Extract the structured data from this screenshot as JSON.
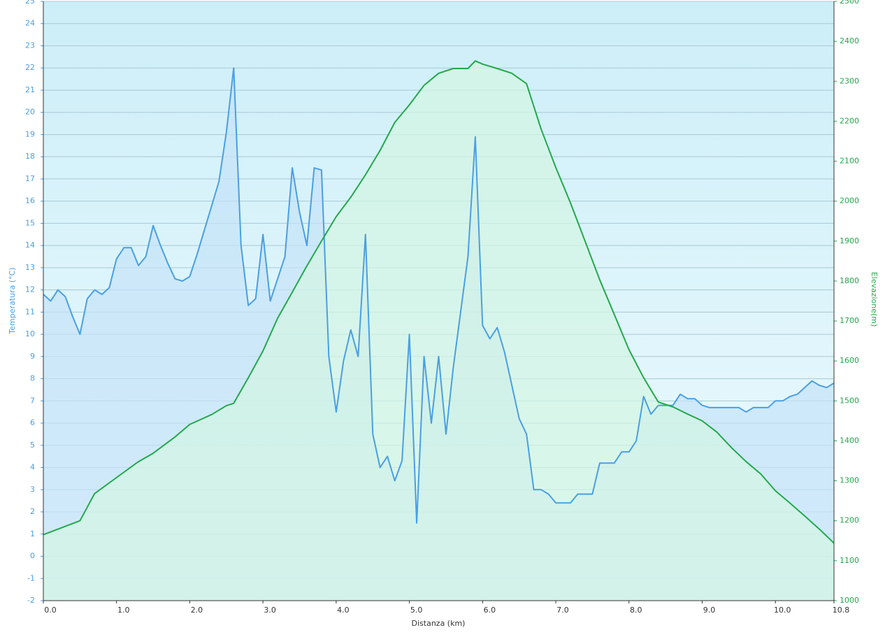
{
  "chart_data": {
    "type": "line",
    "x_label": "Distanza  (km)",
    "y_label": "Temperatura (°C)",
    "y2_label": "Elevazione(m)",
    "xlim": [
      0,
      10.8
    ],
    "xticks": [
      {
        "value": 0,
        "label": "0.0"
      },
      {
        "value": 1,
        "label": "1.0"
      },
      {
        "value": 2,
        "label": "2.0"
      },
      {
        "value": 3,
        "label": "3.0"
      },
      {
        "value": 4,
        "label": "4.0"
      },
      {
        "value": 5,
        "label": "5.0"
      },
      {
        "value": 6,
        "label": "6.0"
      },
      {
        "value": 7,
        "label": "7.0"
      },
      {
        "value": 8,
        "label": "8.0"
      },
      {
        "value": 9,
        "label": "9.0"
      },
      {
        "value": 10,
        "label": "10.0"
      },
      10.8
    ],
    "ylim": [
      -2,
      25
    ],
    "yticks": [
      -2,
      -1,
      0,
      1,
      2,
      3,
      4,
      5,
      6,
      7,
      8,
      9,
      10,
      11,
      12,
      13,
      14,
      15,
      16,
      17,
      18,
      19,
      20,
      21,
      22,
      23,
      24,
      25
    ],
    "y2lim": [
      1000,
      2500
    ],
    "y2ticks": [
      1000,
      1100,
      1200,
      1300,
      1400,
      1500,
      1600,
      1700,
      1800,
      1900,
      2000,
      2100,
      2200,
      2300,
      2400,
      2500
    ],
    "grid": true,
    "series": [
      {
        "name": "Temperatura",
        "color": "#4a9fe3",
        "fill": "#c4e3f8",
        "x": [
          0,
          0.1,
          0.2,
          0.3,
          0.4,
          0.5,
          0.6,
          0.7,
          0.8,
          0.9,
          1.0,
          1.1,
          1.2,
          1.3,
          1.4,
          1.5,
          1.6,
          1.7,
          1.8,
          1.9,
          2.0,
          2.1,
          2.2,
          2.3,
          2.4,
          2.5,
          2.6,
          2.7,
          2.8,
          2.9,
          3.0,
          3.1,
          3.2,
          3.3,
          3.4,
          3.5,
          3.6,
          3.7,
          3.8,
          3.9,
          4.0,
          4.1,
          4.2,
          4.3,
          4.4,
          4.5,
          4.6,
          4.7,
          4.8,
          4.9,
          5.0,
          5.1,
          5.2,
          5.3,
          5.4,
          5.5,
          5.6,
          5.7,
          5.8,
          5.9,
          6.0,
          6.1,
          6.2,
          6.3,
          6.4,
          6.5,
          6.6,
          6.7,
          6.8,
          6.9,
          7.0,
          7.1,
          7.2,
          7.3,
          7.4,
          7.5,
          7.6,
          7.7,
          7.8,
          7.9,
          8.0,
          8.1,
          8.2,
          8.3,
          8.4,
          8.5,
          8.6,
          8.7,
          8.8,
          8.9,
          9.0,
          9.1,
          9.2,
          9.3,
          9.4,
          9.5,
          9.6,
          9.7,
          9.8,
          9.9,
          10.0,
          10.1,
          10.2,
          10.3,
          10.4,
          10.5,
          10.6,
          10.7,
          10.8
        ],
        "values": [
          11.8,
          11.5,
          12.0,
          11.7,
          10.8,
          10.0,
          11.6,
          12.0,
          11.8,
          12.1,
          13.4,
          13.9,
          13.9,
          13.1,
          13.5,
          14.9,
          14.0,
          13.2,
          12.5,
          12.4,
          12.6,
          13.6,
          14.7,
          15.8,
          16.9,
          19.1,
          22.0,
          14.0,
          11.3,
          11.6,
          14.5,
          11.5,
          12.5,
          13.5,
          17.5,
          15.5,
          14.0,
          17.5,
          17.4,
          9.0,
          6.5,
          8.8,
          10.2,
          9.0,
          14.5,
          5.5,
          4.0,
          4.5,
          3.4,
          4.3,
          10.0,
          1.5,
          9.0,
          6.0,
          9.0,
          5.5,
          8.5,
          11.0,
          13.5,
          18.9,
          10.4,
          9.8,
          10.3,
          9.2,
          7.7,
          6.2,
          5.5,
          3.0,
          3.0,
          2.8,
          2.4,
          2.4,
          2.4,
          2.8,
          2.8,
          2.8,
          4.2,
          4.2,
          4.2,
          4.7,
          4.7,
          5.2,
          7.2,
          6.4,
          6.8,
          6.8,
          6.8,
          7.3,
          7.1,
          7.1,
          6.8,
          6.7,
          6.7,
          6.7,
          6.7,
          6.7,
          6.5,
          6.7,
          6.7,
          6.7,
          7.0,
          7.0,
          7.2,
          7.3,
          7.6,
          7.9,
          7.7,
          7.6,
          7.8
        ]
      },
      {
        "name": "Elevazione",
        "color": "#23a84c",
        "fill": "#d3f5e3",
        "axis": "y2",
        "x": [
          0,
          0.5,
          0.7,
          1.0,
          1.3,
          1.5,
          1.8,
          2.0,
          2.3,
          2.5,
          2.6,
          2.8,
          3.0,
          3.2,
          3.4,
          3.6,
          3.8,
          4.0,
          4.2,
          4.4,
          4.6,
          4.8,
          5.0,
          5.2,
          5.4,
          5.6,
          5.8,
          5.9,
          6.0,
          6.2,
          6.4,
          6.6,
          6.8,
          7.0,
          7.2,
          7.4,
          7.6,
          7.8,
          8.0,
          8.2,
          8.4,
          8.6,
          8.8,
          9.0,
          9.2,
          9.4,
          9.6,
          9.8,
          10.0,
          10.2,
          10.4,
          10.6,
          10.8
        ],
        "values": [
          1165,
          1200,
          1268,
          1308,
          1348,
          1369,
          1410,
          1441,
          1466,
          1488,
          1494,
          1558,
          1625,
          1707,
          1772,
          1838,
          1900,
          1961,
          2010,
          2066,
          2127,
          2197,
          2241,
          2290,
          2320,
          2332,
          2332,
          2351,
          2343,
          2332,
          2320,
          2294,
          2180,
          2084,
          1996,
          1900,
          1803,
          1716,
          1628,
          1558,
          1497,
          1485,
          1467,
          1450,
          1422,
          1383,
          1348,
          1317,
          1275,
          1244,
          1212,
          1179,
          1144
        ]
      }
    ]
  }
}
